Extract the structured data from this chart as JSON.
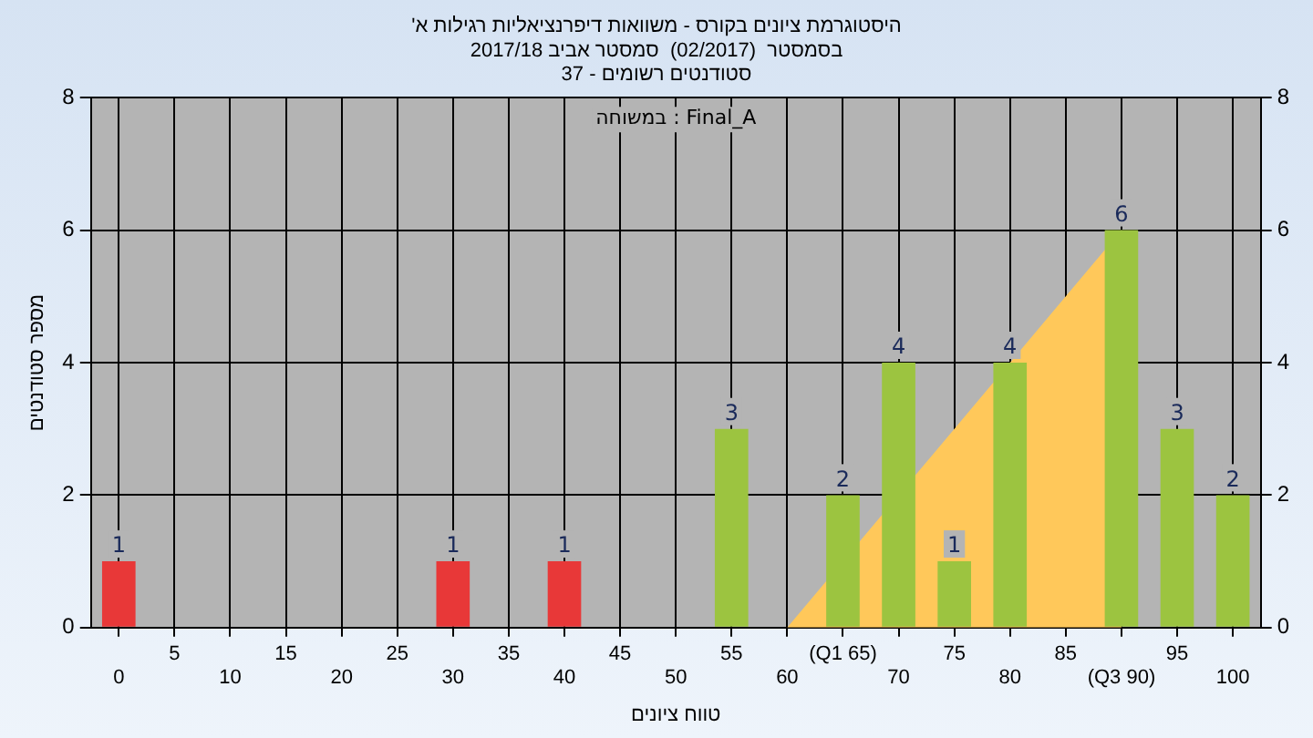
{
  "chart_data": {
    "type": "bar",
    "title": "'היסטוגרמת ציונים בקורס - משוואות דיפרנציאליות רגילות א",
    "subtitle": [
      "בסמסטר  (02/2017)  סמסטר אביב 2017/18",
      "סטודנטים רשומים - 37"
    ],
    "xlabel": "טווח ציונים",
    "ylabel": "מספר סטודנטים",
    "annotations": [
      "במשוחה : Final_A"
    ],
    "categories": [
      "0",
      "5",
      "10",
      "15",
      "20",
      "25",
      "30",
      "35",
      "40",
      "45",
      "50",
      "55",
      "60",
      "(Q1 65)",
      "70",
      "75",
      "80",
      "85",
      "(Q3 90)",
      "95",
      "100"
    ],
    "series": [
      {
        "type": "area",
        "color": "#ffc85a",
        "values": [
          null,
          null,
          null,
          null,
          null,
          null,
          null,
          null,
          null,
          null,
          null,
          null,
          0,
          null,
          null,
          3,
          4,
          5,
          6,
          null,
          null
        ]
      },
      {
        "colors": [
          "#e83838",
          "#9cc440",
          "#9cc440",
          "#9cc440",
          "#9cc440",
          "#9cc440",
          "#e83838",
          "#9cc440",
          "#e83838",
          "#9cc440",
          "#9cc440",
          "#9cc440",
          "#9cc440",
          "#9cc440",
          "#9cc440",
          "#9cc440",
          "#9cc440",
          "#9cc440",
          "#9cc440",
          "#9cc440",
          "#9cc440"
        ],
        "values": [
          1,
          0,
          0,
          0,
          0,
          0,
          1,
          0,
          1,
          0,
          0,
          3,
          0,
          2,
          4,
          1,
          4,
          0,
          6,
          3,
          2
        ],
        "value_labels": [
          "1",
          null,
          null,
          null,
          null,
          null,
          "1",
          null,
          "1",
          null,
          null,
          "3",
          null,
          "2",
          "4",
          "1",
          "4",
          null,
          "6",
          "3",
          "2"
        ]
      }
    ],
    "ylim": [
      0,
      8
    ],
    "yticks": [
      0,
      2,
      4,
      6,
      8
    ],
    "y2lim": [
      0,
      8
    ],
    "y2ticks": [
      0,
      2,
      4,
      6,
      8
    ],
    "grid": true,
    "legend": false
  }
}
